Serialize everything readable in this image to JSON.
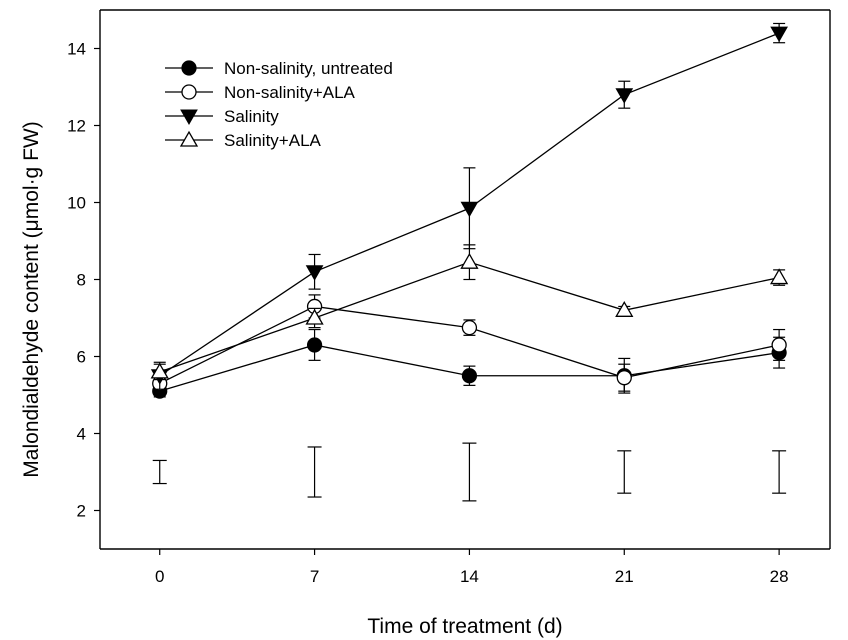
{
  "chart_data": {
    "type": "line",
    "xlabel": "Time of treatment (d)",
    "ylabel": "Malondialdehyde content (μmol·g FW)",
    "x": [
      0,
      7,
      14,
      21,
      28
    ],
    "x_ticks": [
      "0",
      "7",
      "14",
      "21",
      "28"
    ],
    "y_ticks": [
      "2",
      "4",
      "6",
      "8",
      "10",
      "12",
      "14"
    ],
    "xlim": [
      -2.7,
      30.3
    ],
    "ylim": [
      1.0,
      15.0
    ],
    "grid": false,
    "legend_position": "top-left",
    "series": [
      {
        "name": "Non-salinity, untreated",
        "marker": "circle-filled",
        "values": [
          5.1,
          6.3,
          5.5,
          5.5,
          6.1
        ],
        "errors": [
          0.15,
          0.4,
          0.25,
          0.45,
          0.4
        ]
      },
      {
        "name": "Non-salinity+ALA",
        "marker": "circle-open",
        "values": [
          5.3,
          7.3,
          6.75,
          5.45,
          6.3
        ],
        "errors": [
          0.2,
          0.3,
          0.2,
          0.35,
          0.4
        ]
      },
      {
        "name": "Salinity",
        "marker": "triangle-down-filled",
        "values": [
          5.5,
          8.2,
          9.85,
          12.8,
          14.4
        ],
        "errors": [
          0.35,
          0.45,
          1.05,
          0.35,
          0.25
        ]
      },
      {
        "name": "Salinity+ALA",
        "marker": "triangle-up-open",
        "values": [
          5.6,
          7.0,
          8.45,
          7.2,
          8.05
        ],
        "errors": [
          0.2,
          0.25,
          0.45,
          0.1,
          0.2
        ]
      }
    ],
    "lsd_bars": [
      {
        "x": 0,
        "low": 2.7,
        "high": 3.3
      },
      {
        "x": 7,
        "low": 2.35,
        "high": 3.65
      },
      {
        "x": 14,
        "low": 2.25,
        "high": 3.75
      },
      {
        "x": 21,
        "low": 2.45,
        "high": 3.55
      },
      {
        "x": 28,
        "low": 2.45,
        "high": 3.55
      }
    ]
  }
}
